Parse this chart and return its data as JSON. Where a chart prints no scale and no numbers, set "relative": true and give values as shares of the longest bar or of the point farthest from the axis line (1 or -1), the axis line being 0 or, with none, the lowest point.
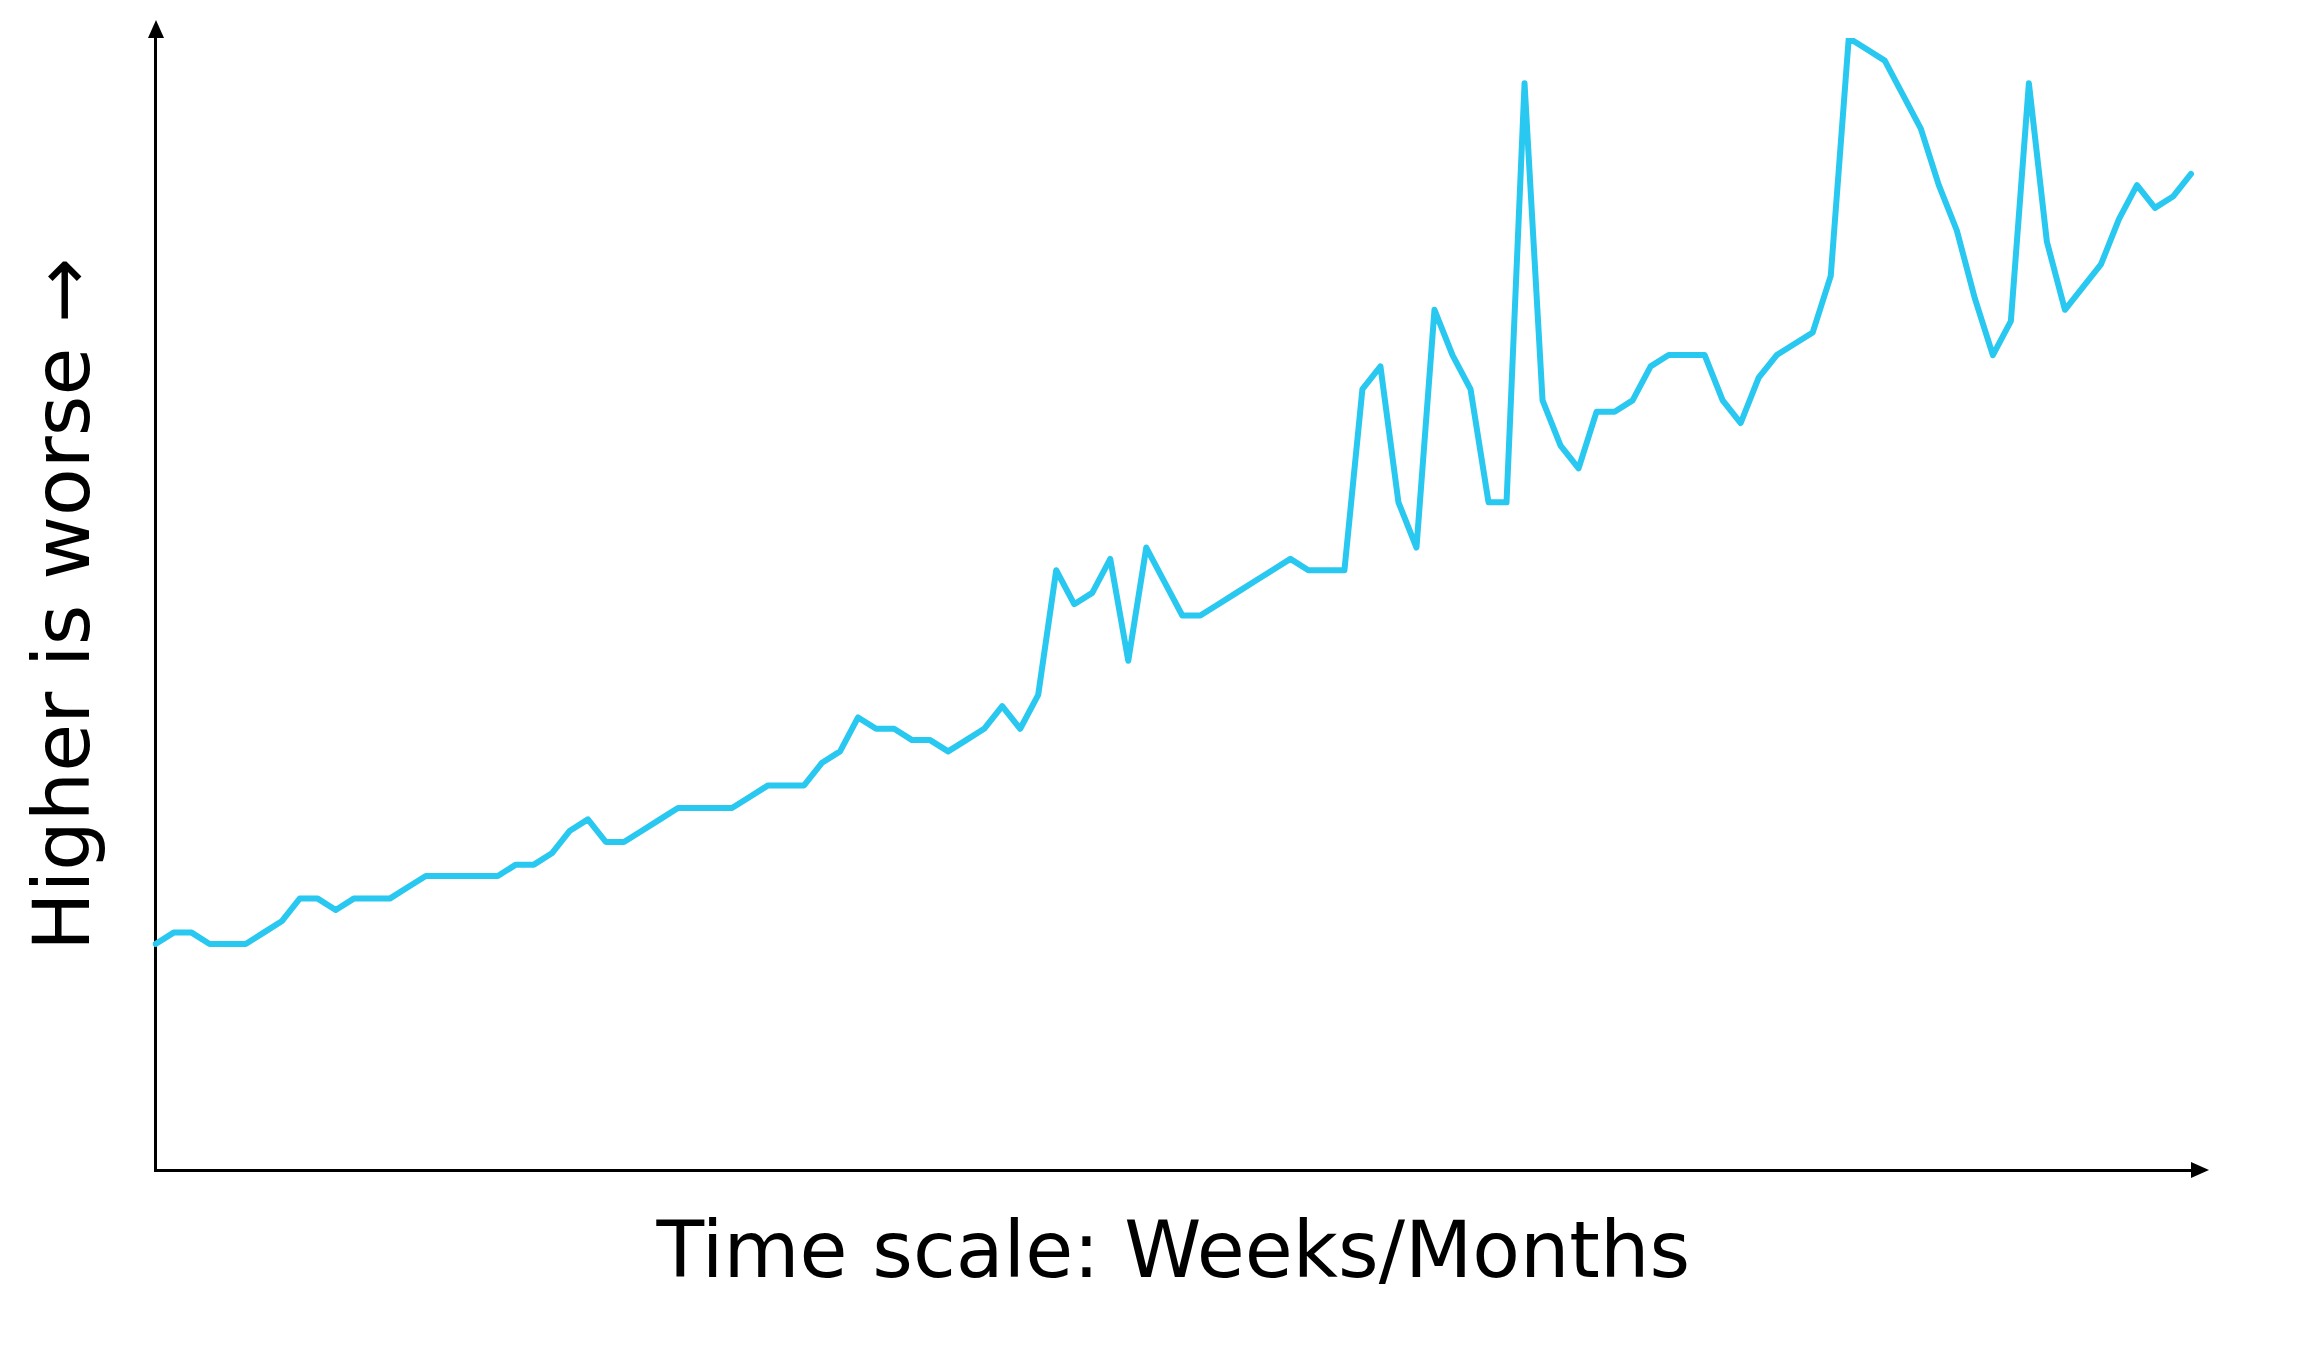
{
  "chart_data": {
    "type": "line",
    "xlabel": "Time scale: Weeks/Months",
    "ylabel": "Higher is worse →",
    "relative": true,
    "categories": [
      null,
      null,
      null,
      null,
      null,
      null,
      null,
      null,
      null,
      null,
      null,
      null,
      null,
      null,
      null,
      null,
      null,
      null,
      null,
      null,
      null,
      null,
      null,
      null,
      null,
      null,
      null,
      null,
      null,
      null,
      null,
      null,
      null,
      null,
      null,
      null,
      null,
      null,
      null,
      null,
      null,
      null,
      null,
      null,
      null,
      null,
      null,
      null,
      null,
      null,
      null,
      null,
      null,
      null,
      null,
      null,
      null,
      null,
      null,
      null,
      null,
      null,
      null,
      null,
      null,
      null,
      null,
      null,
      null,
      null,
      null,
      null,
      null,
      null,
      null,
      null,
      null,
      null,
      null,
      null,
      null,
      null,
      null,
      null,
      null,
      null,
      null,
      null,
      null,
      null,
      null,
      null,
      null,
      null,
      null,
      null,
      null,
      null,
      null,
      null,
      null,
      null,
      null,
      null,
      null,
      null,
      null,
      null,
      null,
      null,
      null,
      null,
      null,
      null
    ],
    "series": [
      {
        "color": "#29c8f0",
        "values": [
          0.2,
          0.21,
          0.21,
          0.2,
          0.2,
          0.2,
          0.21,
          0.22,
          0.24,
          0.24,
          0.23,
          0.24,
          0.24,
          0.24,
          0.25,
          0.26,
          0.26,
          0.26,
          0.26,
          0.26,
          0.27,
          0.27,
          0.28,
          0.3,
          0.31,
          0.29,
          0.29,
          0.3,
          0.31,
          0.32,
          0.32,
          0.32,
          0.32,
          0.33,
          0.34,
          0.34,
          0.34,
          0.36,
          0.37,
          0.4,
          0.39,
          0.39,
          0.38,
          0.38,
          0.37,
          0.38,
          0.39,
          0.41,
          0.39,
          0.42,
          0.53,
          0.5,
          0.51,
          0.54,
          0.45,
          0.55,
          0.52,
          0.49,
          0.49,
          0.5,
          0.51,
          0.52,
          0.53,
          0.54,
          0.53,
          0.53,
          0.53,
          0.69,
          0.71,
          0.59,
          0.55,
          0.76,
          0.72,
          0.69,
          0.59,
          0.59,
          0.96,
          0.68,
          0.64,
          0.62,
          0.67,
          0.67,
          0.68,
          0.71,
          0.72,
          0.72,
          0.72,
          0.68,
          0.66,
          0.7,
          0.72,
          0.73,
          0.74,
          0.79,
          1.0,
          0.99,
          0.98,
          0.95,
          0.92,
          0.87,
          0.83,
          0.77,
          0.72,
          0.75,
          0.96,
          0.82,
          0.76,
          0.78,
          0.8,
          0.84,
          0.87,
          0.85,
          0.86,
          0.88
        ]
      }
    ]
  }
}
